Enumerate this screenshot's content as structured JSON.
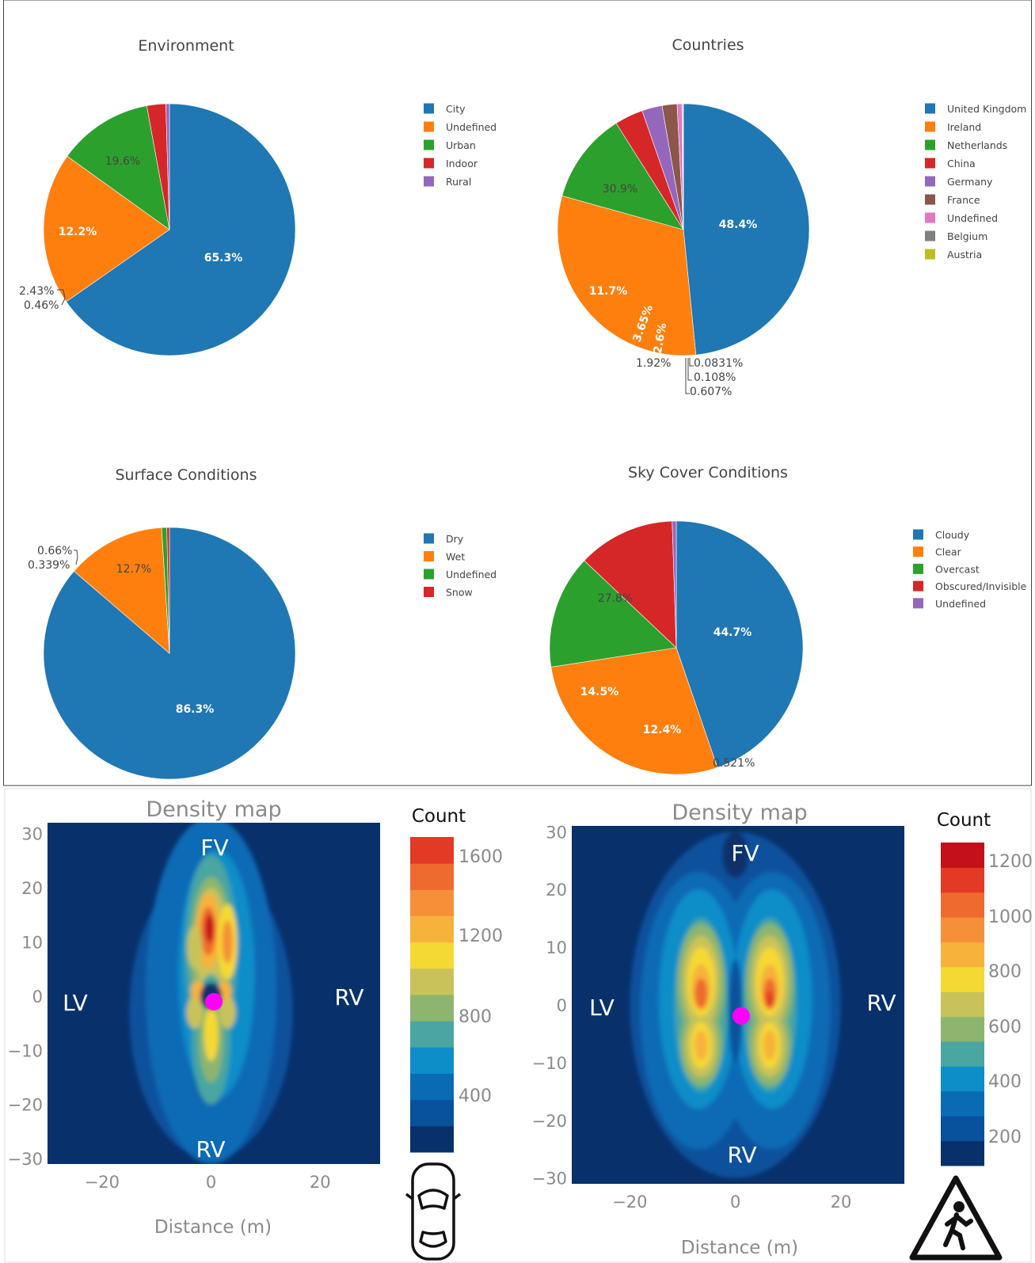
{
  "chart_data": [
    {
      "type": "pie",
      "title": "Environment",
      "labels": [
        "City",
        "Undefined",
        "Urban",
        "Indoor",
        "Rural"
      ],
      "values": [
        65.3,
        19.6,
        12.2,
        2.43,
        0.46
      ],
      "value_labels": [
        "65.3%",
        "19.6%",
        "12.2%",
        "2.43%",
        "0.46%"
      ],
      "colors": [
        "#1f77b4",
        "#ff7f0e",
        "#2ca02c",
        "#d62728",
        "#9467bd"
      ],
      "legend": "right"
    },
    {
      "type": "pie",
      "title": "Countries",
      "labels": [
        "United Kingdom",
        "Ireland",
        "Netherlands",
        "China",
        "Germany",
        "France",
        "Undefined",
        "Belgium",
        "Austria"
      ],
      "values": [
        48.4,
        30.9,
        11.7,
        3.65,
        2.6,
        1.92,
        0.607,
        0.108,
        0.0831
      ],
      "value_labels": [
        "48.4%",
        "30.9%",
        "11.7%",
        "3.65%",
        "2.6%",
        "1.92%",
        "0.607%",
        "0.108%",
        "0.0831%"
      ],
      "colors": [
        "#1f77b4",
        "#ff7f0e",
        "#2ca02c",
        "#d62728",
        "#9467bd",
        "#8c564b",
        "#e377c2",
        "#7f7f7f",
        "#bcbd22"
      ],
      "legend": "right"
    },
    {
      "type": "pie",
      "title": "Surface Conditions",
      "labels": [
        "Dry",
        "Wet",
        "Undefined",
        "Snow"
      ],
      "values": [
        86.3,
        12.7,
        0.66,
        0.339
      ],
      "value_labels": [
        "86.3%",
        "12.7%",
        "0.66%",
        "0.339%"
      ],
      "colors": [
        "#1f77b4",
        "#ff7f0e",
        "#2ca02c",
        "#d62728"
      ],
      "legend": "right"
    },
    {
      "type": "pie",
      "title": "Sky Cover Conditions",
      "labels": [
        "Cloudy",
        "Clear",
        "Overcast",
        "Obscured/Invisible",
        "Undefined"
      ],
      "values": [
        44.7,
        27.8,
        14.5,
        12.4,
        0.521
      ],
      "value_labels": [
        "44.7%",
        "27.8%",
        "14.5%",
        "12.4%",
        "0.521%"
      ],
      "colors": [
        "#1f77b4",
        "#ff7f0e",
        "#2ca02c",
        "#d62728",
        "#9467bd"
      ],
      "legend": "right"
    },
    {
      "type": "heatmap",
      "title": "Density map",
      "xlabel": "Distance (m)",
      "xticks": [
        "−20",
        "0",
        "20"
      ],
      "yticks": [
        "30",
        "20",
        "10",
        "0",
        "−10",
        "−20",
        "−30"
      ],
      "xlim": [
        -30,
        31
      ],
      "ylim": [
        -31,
        32
      ],
      "colorbar_title": "Count",
      "colorbar_ticks": [
        "1600",
        "1200",
        "800",
        "400"
      ],
      "colorbar_range": [
        0,
        1800
      ],
      "region_labels": [
        "FV",
        "LV",
        "RV",
        "RV"
      ],
      "ego_marker": [
        0,
        -2
      ],
      "icon": "car-top-view-icon"
    },
    {
      "type": "heatmap",
      "title": "Density map",
      "xlabel": "Distance (m)",
      "xticks": [
        "−20",
        "0",
        "20"
      ],
      "yticks": [
        "30",
        "20",
        "10",
        "0",
        "−10",
        "−20",
        "−30"
      ],
      "xlim": [
        -31,
        32
      ],
      "ylim": [
        -31,
        31
      ],
      "colorbar_title": "Count",
      "colorbar_ticks": [
        "1200",
        "1000",
        "800",
        "600",
        "400",
        "200"
      ],
      "colorbar_range": [
        0,
        1300
      ],
      "region_labels": [
        "FV",
        "LV",
        "RV",
        "RV"
      ],
      "ego_marker": [
        0,
        -2
      ],
      "icon": "pedestrian-crossing-sign-icon"
    }
  ]
}
